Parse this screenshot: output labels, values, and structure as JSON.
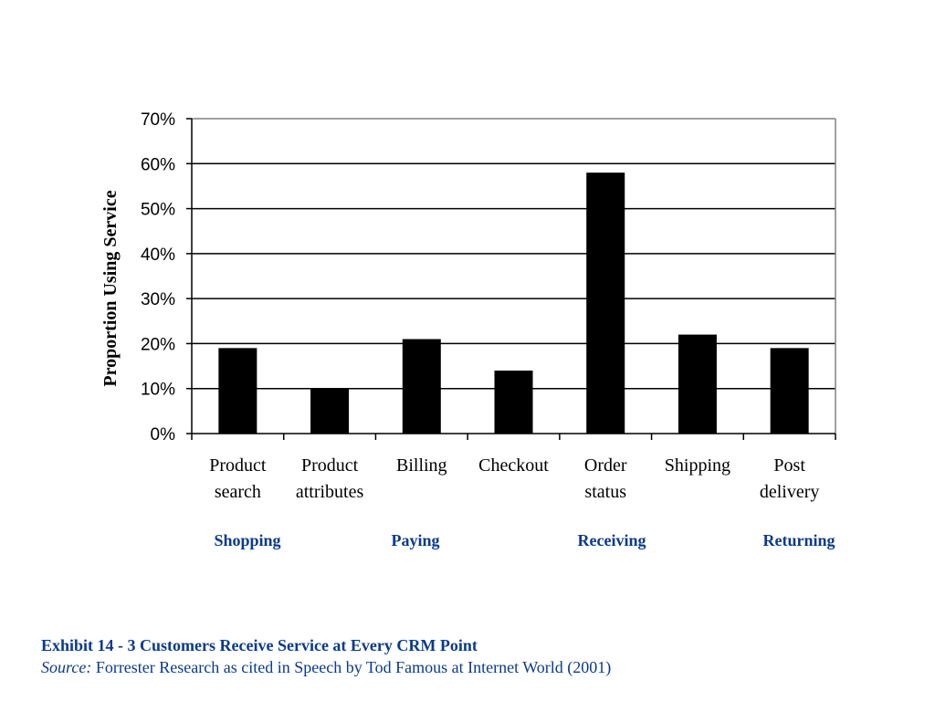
{
  "chart_data": {
    "type": "bar",
    "categories": [
      [
        "Product",
        "search"
      ],
      [
        "Product",
        "attributes"
      ],
      [
        "Billing"
      ],
      [
        "Checkout"
      ],
      [
        "Order",
        "status"
      ],
      [
        "Shipping"
      ],
      [
        "Post",
        "delivery"
      ]
    ],
    "values": [
      19,
      10,
      21,
      14,
      58,
      22,
      19
    ],
    "ylabel": "Proportion Using Service",
    "ylim": [
      0,
      70
    ],
    "yticks": [
      "0%",
      "10%",
      "20%",
      "30%",
      "40%",
      "50%",
      "60%",
      "70%"
    ],
    "grid": true,
    "bar_color": "#000000",
    "stages": [
      "Shopping",
      "Paying",
      "Receiving",
      "Returning"
    ],
    "stage_color": "#0b3a8c"
  },
  "caption": {
    "title": "Exhibit 14 - 3 Customers Receive Service at Every CRM Point",
    "source_label": "Source:",
    "source_text": " Forrester Research as cited in Speech by Tod Famous at Internet World (2001)"
  }
}
